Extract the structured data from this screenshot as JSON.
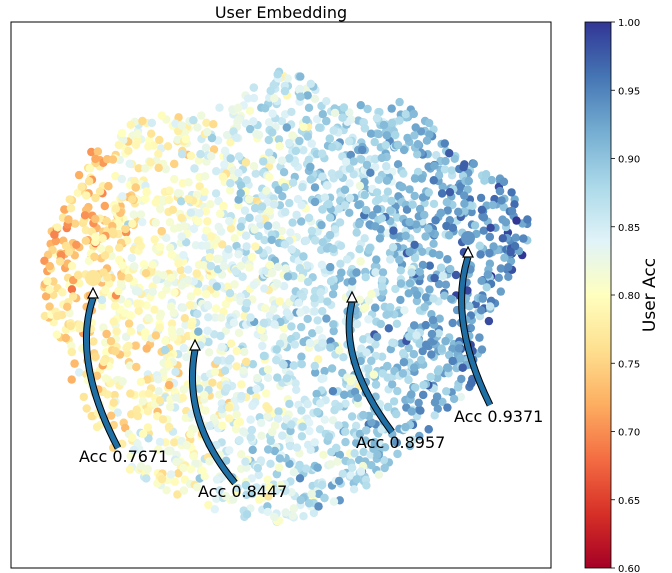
{
  "chart_data": {
    "type": "scatter",
    "title": "User Embedding",
    "xlabel": "",
    "ylabel": "",
    "grid": false,
    "color_encoding": "User Acc",
    "colorbar": {
      "label": "User Acc",
      "range": [
        0.6,
        1.0
      ],
      "ticks": [
        "1.00",
        "0.95",
        "0.90",
        "0.85",
        "0.80",
        "0.75",
        "0.70",
        "0.65",
        "0.60"
      ],
      "colormap": "RdYlBu",
      "stops": [
        "#a50026",
        "#d73027",
        "#f46d43",
        "#fdae61",
        "#fee090",
        "#ffffbf",
        "#e0f3f8",
        "#abd9e9",
        "#74add1",
        "#4575b4",
        "#313695"
      ]
    },
    "highlighted_users": [
      {
        "label": "Acc 0.7671",
        "acc": 0.7671
      },
      {
        "label": "Acc 0.8447",
        "acc": 0.8447
      },
      {
        "label": "Acc 0.8957",
        "acc": 0.8957
      },
      {
        "label": "Acc 0.9371",
        "acc": 0.9371
      }
    ],
    "arrow_color": "#1f6fa5"
  }
}
